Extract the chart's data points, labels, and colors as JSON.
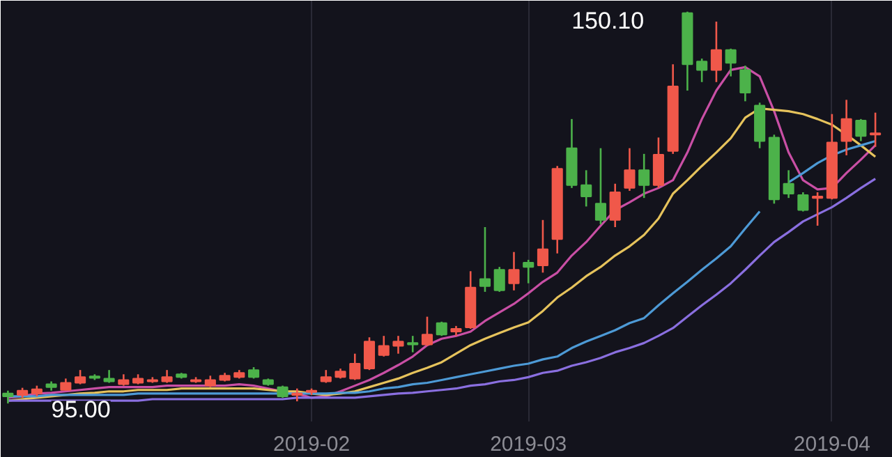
{
  "chart_data": {
    "type": "candlestick",
    "categories": [
      null,
      null,
      null,
      null,
      null,
      null,
      null,
      null,
      null,
      null,
      null,
      null,
      null,
      null,
      null,
      null,
      null,
      null,
      null,
      null,
      null,
      "2019-02",
      null,
      null,
      null,
      null,
      null,
      null,
      null,
      null,
      null,
      null,
      null,
      null,
      null,
      null,
      "2019-03",
      null,
      null,
      null,
      null,
      null,
      null,
      null,
      null,
      null,
      null,
      null,
      null,
      null,
      null,
      null,
      null,
      null,
      null,
      null,
      null,
      "2019-04",
      null,
      null,
      null
    ],
    "ohlc": [
      [
        96.4,
        96.8,
        95.0,
        96.0
      ],
      [
        96.2,
        97.2,
        95.8,
        96.8
      ],
      [
        96.4,
        97.5,
        96.0,
        97.0
      ],
      [
        97.7,
        98.1,
        96.8,
        97.3
      ],
      [
        96.9,
        98.5,
        96.8,
        97.9
      ],
      [
        97.9,
        99.7,
        97.7,
        98.7
      ],
      [
        98.8,
        99.1,
        98.3,
        98.6
      ],
      [
        98.5,
        99.7,
        97.9,
        98.1
      ],
      [
        97.7,
        99.1,
        97.5,
        98.3
      ],
      [
        97.9,
        99.1,
        97.7,
        98.5
      ],
      [
        98.1,
        98.7,
        97.9,
        98.3
      ],
      [
        98.1,
        99.7,
        97.9,
        98.7
      ],
      [
        99.1,
        99.3,
        98.5,
        98.7
      ],
      [
        98.1,
        98.7,
        97.9,
        98.3
      ],
      [
        97.5,
        98.9,
        97.3,
        98.3
      ],
      [
        98.3,
        99.3,
        98.1,
        98.9
      ],
      [
        98.7,
        99.7,
        98.5,
        99.3
      ],
      [
        99.7,
        100.1,
        98.5,
        98.7
      ],
      [
        98.3,
        98.5,
        97.5,
        97.7
      ],
      [
        97.3,
        97.5,
        95.8,
        96.0
      ],
      [
        96.2,
        97.1,
        95.3,
        96.4
      ],
      [
        96.6,
        97.1,
        96.2,
        96.8
      ],
      [
        98.1,
        99.7,
        97.9,
        98.7
      ],
      [
        98.7,
        99.9,
        98.5,
        99.5
      ],
      [
        98.5,
        102.0,
        98.3,
        100.6
      ],
      [
        99.9,
        104.3,
        99.7,
        103.7
      ],
      [
        101.8,
        104.5,
        101.6,
        103.1
      ],
      [
        103.1,
        104.5,
        102.0,
        103.7
      ],
      [
        103.5,
        104.5,
        102.2,
        103.3
      ],
      [
        103.3,
        107.2,
        103.1,
        104.7
      ],
      [
        106.3,
        106.5,
        104.5,
        104.7
      ],
      [
        105.1,
        105.9,
        104.5,
        105.5
      ],
      [
        105.7,
        113.6,
        105.5,
        111.3
      ],
      [
        112.5,
        119.8,
        110.7,
        111.5
      ],
      [
        113.8,
        114.2,
        110.7,
        110.9
      ],
      [
        111.9,
        116.3,
        110.9,
        113.8
      ],
      [
        114.8,
        115.2,
        111.9,
        114.2
      ],
      [
        114.4,
        120.8,
        113.4,
        116.7
      ],
      [
        118.1,
        128.4,
        116.1,
        128.0
      ],
      [
        130.9,
        135.0,
        125.3,
        125.7
      ],
      [
        125.7,
        127.8,
        122.7,
        124.1
      ],
      [
        123.1,
        130.9,
        120.2,
        120.8
      ],
      [
        120.8,
        125.9,
        119.8,
        124.7
      ],
      [
        125.3,
        130.9,
        124.9,
        127.8
      ],
      [
        127.8,
        130.1,
        123.9,
        125.7
      ],
      [
        125.7,
        132.4,
        125.3,
        130.0
      ],
      [
        130.5,
        142.7,
        130.1,
        139.6
      ],
      [
        149.9,
        150.1,
        139.0,
        142.7
      ],
      [
        143.1,
        143.5,
        140.2,
        141.9
      ],
      [
        141.9,
        148.7,
        140.2,
        144.7
      ],
      [
        144.7,
        144.9,
        141.0,
        142.9
      ],
      [
        141.9,
        142.5,
        137.5,
        138.7
      ],
      [
        136.9,
        137.3,
        130.9,
        131.9
      ],
      [
        132.4,
        132.8,
        123.1,
        123.7
      ],
      [
        125.9,
        127.8,
        123.9,
        124.5
      ],
      [
        124.3,
        124.7,
        122.0,
        122.2
      ],
      [
        123.9,
        124.7,
        120.0,
        124.1
      ],
      [
        123.9,
        135.7,
        123.7,
        131.7
      ],
      [
        131.9,
        137.7,
        129.9,
        135.0
      ],
      [
        134.8,
        135.0,
        131.9,
        132.6
      ],
      [
        132.8,
        135.9,
        131.1,
        133.0
      ]
    ],
    "colors": [
      "#4cb24a",
      "#f0584a",
      "#f0584a",
      "#4cb24a",
      "#f0584a",
      "#f0584a",
      "#4cb24a",
      "#4cb24a",
      "#f0584a",
      "#f0584a",
      "#f0584a",
      "#f0584a",
      "#4cb24a",
      "#f0584a",
      "#f0584a",
      "#f0584a",
      "#f0584a",
      "#4cb24a",
      "#4cb24a",
      "#4cb24a",
      "#f0584a",
      "#f0584a",
      "#f0584a",
      "#f0584a",
      "#f0584a",
      "#f0584a",
      "#f0584a",
      "#f0584a",
      "#4cb24a",
      "#f0584a",
      "#4cb24a",
      "#f0584a",
      "#f0584a",
      "#4cb24a",
      "#4cb24a",
      "#f0584a",
      "#4cb24a",
      "#f0584a",
      "#f0584a",
      "#4cb24a",
      "#4cb24a",
      "#4cb24a",
      "#f0584a",
      "#f0584a",
      "#4cb24a",
      "#f0584a",
      "#f0584a",
      "#4cb24a",
      "#4cb24a",
      "#f0584a",
      "#4cb24a",
      "#4cb24a",
      "#4cb24a",
      "#4cb24a",
      "#4cb24a",
      "#4cb24a",
      "#f0584a",
      "#f0584a",
      "#f0584a",
      "#4cb24a",
      "#f0584a"
    ],
    "series": [
      {
        "type": "line",
        "color": "#c94fa5",
        "values": [
          95.8,
          96.0,
          96.4,
          96.5,
          96.7,
          96.9,
          97.1,
          97.3,
          97.3,
          97.3,
          97.3,
          97.5,
          97.5,
          97.5,
          97.5,
          97.5,
          97.7,
          97.5,
          97.1,
          96.7,
          96.4,
          95.8,
          96.0,
          96.7,
          97.5,
          98.3,
          99.3,
          100.4,
          101.6,
          103.2,
          104.1,
          104.5,
          105.1,
          106.6,
          107.8,
          109.0,
          110.5,
          112.1,
          113.4,
          115.8,
          117.7,
          120.0,
          122.2,
          123.3,
          124.5,
          125.3,
          126.4,
          130.3,
          135.0,
          139.0,
          141.9,
          142.3,
          141.0,
          136.1,
          130.3,
          126.4,
          125.1,
          125.3,
          127.4,
          129.3,
          131.3
        ]
      },
      {
        "type": "line",
        "color": "#e6c35c",
        "values": [
          95.4,
          95.6,
          95.8,
          96.0,
          96.2,
          96.4,
          96.5,
          96.7,
          96.7,
          96.9,
          96.9,
          96.9,
          97.1,
          97.1,
          97.1,
          97.1,
          97.1,
          97.1,
          96.9,
          96.7,
          96.7,
          96.4,
          96.2,
          96.4,
          96.7,
          97.3,
          97.9,
          98.5,
          99.3,
          100.0,
          100.8,
          102.0,
          103.2,
          104.1,
          104.9,
          105.7,
          106.4,
          108.0,
          109.9,
          111.3,
          112.9,
          114.2,
          115.8,
          117.1,
          118.7,
          121.0,
          124.5,
          126.4,
          128.4,
          130.3,
          132.3,
          135.2,
          136.5,
          136.3,
          136.1,
          135.7,
          135.0,
          134.2,
          132.8,
          131.3,
          129.7
        ]
      },
      {
        "type": "line",
        "color": "#4d9ad6",
        "values": [
          96.0,
          96.0,
          96.0,
          96.2,
          96.2,
          96.2,
          96.2,
          96.2,
          96.2,
          96.4,
          96.4,
          96.4,
          96.4,
          96.4,
          96.4,
          96.4,
          96.4,
          96.4,
          96.4,
          96.4,
          96.4,
          96.4,
          96.4,
          96.5,
          96.5,
          96.7,
          97.1,
          97.3,
          97.7,
          97.9,
          98.3,
          98.7,
          99.1,
          99.5,
          99.9,
          100.3,
          100.6,
          101.2,
          101.6,
          102.8,
          103.7,
          104.5,
          105.3,
          106.3,
          107.0,
          108.8,
          110.5,
          112.1,
          113.8,
          115.4,
          117.1,
          119.6,
          122.0,
          null,
          126.1,
          127.4,
          128.8,
          129.9,
          130.7,
          131.3,
          131.9
        ]
      },
      {
        "type": "line",
        "color": "#8a6fe0",
        "values": [
          95.4,
          95.4,
          95.4,
          95.4,
          95.4,
          95.4,
          95.4,
          95.4,
          95.4,
          95.4,
          95.6,
          95.6,
          95.6,
          95.6,
          95.6,
          95.6,
          95.6,
          95.6,
          95.6,
          95.6,
          95.8,
          95.8,
          95.8,
          95.8,
          95.8,
          96.0,
          96.2,
          96.4,
          96.5,
          96.7,
          96.9,
          97.1,
          97.5,
          97.7,
          98.1,
          98.3,
          98.7,
          99.3,
          99.6,
          100.3,
          100.8,
          101.4,
          102.2,
          102.8,
          103.5,
          104.5,
          105.6,
          107.2,
          108.8,
          110.3,
          111.9,
          113.8,
          115.8,
          117.7,
          119.1,
          120.6,
          121.6,
          122.6,
          123.9,
          125.3,
          126.6
        ]
      }
    ],
    "annotations": [
      "150.10",
      "95.00"
    ],
    "tick_labels": "x",
    "grid": "x"
  }
}
